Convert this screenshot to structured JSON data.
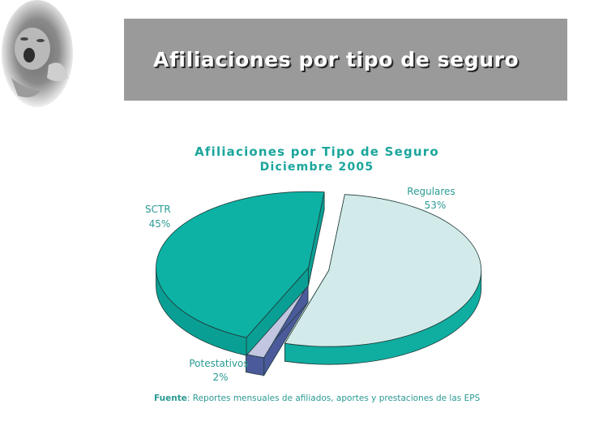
{
  "header": {
    "title": "Afiliaciones por tipo de seguro"
  },
  "photo": {
    "icon": "baby-photo-vignette"
  },
  "chart_data": {
    "type": "pie",
    "title": "Afiliaciones por Tipo de Seguro",
    "subtitle": "Diciembre 2005",
    "slices": [
      {
        "label": "Regulares",
        "value": 53,
        "value_label": "53%",
        "color": "#d2ebea",
        "side_color": "#10ada1"
      },
      {
        "label": "Potestativos",
        "value": 2,
        "value_label": "2%",
        "color": "#c2c6e1",
        "side_color": "#4a5a9a"
      },
      {
        "label": "SCTR",
        "value": 45,
        "value_label": "45%",
        "color": "#0db2a5",
        "side_color": "#0a9f94"
      }
    ],
    "exploded": true,
    "three_d": true,
    "legend": "none",
    "colors": {
      "title": "#1aa59c",
      "labels": "#2a9a93"
    }
  },
  "source": {
    "label": "Fuente",
    "text": ": Reportes mensuales de afiliados, aportes y prestaciones de las EPS"
  }
}
